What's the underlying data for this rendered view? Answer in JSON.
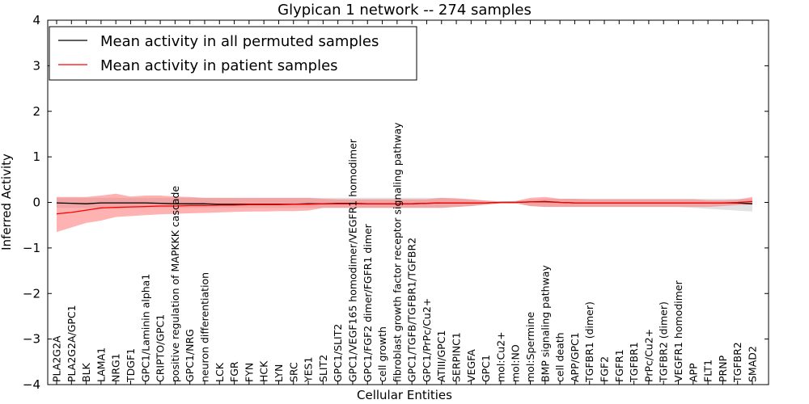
{
  "chart_data": {
    "type": "line",
    "title": "Glypican 1 network -- 274 samples",
    "xlabel": "Cellular Entities",
    "ylabel": "Inferred Activity",
    "ylim": [
      -4,
      4
    ],
    "yticks": [
      "−4",
      "−3",
      "−2",
      "−1",
      "0",
      "1",
      "2",
      "3",
      "4"
    ],
    "legend_position": "top-left",
    "categories": [
      "PLA2G2A",
      "PLA2G2A/GPC1",
      "BLK",
      "LAMA1",
      "NRG1",
      "TDGF1",
      "GPC1/Laminin alpha1",
      "CRIPTO/GPC1",
      "positive regulation of MAPKKK cascade",
      "GPC1/NRG",
      "neuron differentiation",
      "LCK",
      "FGR",
      "FYN",
      "HCK",
      "LYN",
      "SRC",
      "YES1",
      "SLIT2",
      "GPC1/SLIT2",
      "GPC1/VEGF165 homodimer/VEGFR1 homodimer",
      "GPC1/FGF2 dimer/FGFR1 dimer",
      "cell growth",
      "fibroblast growth factor receptor signaling pathway",
      "GPC1/TGFB/TGFBR1/TGFBR2",
      "GPC1/PrPc/Cu2+",
      "ATIII/GPC1",
      "SERPINC1",
      "VEGFA",
      "GPC1",
      "mol:Cu2+",
      "mol:NO",
      "mol:Spermine",
      "BMP signaling pathway",
      "cell death",
      "APP/GPC1",
      "TGFBR1 (dimer)",
      "FGF2",
      "FGFR1",
      "TGFBR1",
      "PrPc/Cu2+",
      "TGFBR2 (dimer)",
      "VEGFR1 homodimer",
      "APP",
      "FLT1",
      "PRNP",
      "TGFBR2",
      "SMAD2"
    ],
    "series": [
      {
        "name": "Mean activity in all permuted samples",
        "color": "#000000",
        "band_color": "#bfbfbf",
        "values": [
          -0.01,
          -0.02,
          -0.03,
          -0.01,
          -0.01,
          -0.01,
          -0.01,
          -0.02,
          -0.03,
          -0.03,
          -0.03,
          -0.04,
          -0.04,
          -0.04,
          -0.04,
          -0.04,
          -0.04,
          -0.03,
          -0.03,
          -0.02,
          -0.02,
          -0.03,
          -0.03,
          -0.03,
          -0.03,
          -0.02,
          -0.01,
          -0.01,
          -0.01,
          -0.01,
          0.0,
          0.0,
          0.01,
          0.02,
          0.0,
          -0.01,
          -0.01,
          -0.01,
          -0.01,
          -0.01,
          -0.01,
          -0.01,
          -0.01,
          -0.01,
          -0.01,
          -0.01,
          -0.01,
          -0.03
        ],
        "lower": [
          -0.12,
          -0.12,
          -0.12,
          -0.12,
          -0.12,
          -0.12,
          -0.12,
          -0.12,
          -0.12,
          -0.12,
          -0.12,
          -0.12,
          -0.12,
          -0.12,
          -0.12,
          -0.12,
          -0.12,
          -0.12,
          -0.12,
          -0.12,
          -0.12,
          -0.12,
          -0.12,
          -0.12,
          -0.12,
          -0.12,
          -0.12,
          -0.1,
          -0.08,
          -0.05,
          -0.02,
          -0.02,
          -0.08,
          -0.1,
          -0.1,
          -0.1,
          -0.1,
          -0.1,
          -0.1,
          -0.1,
          -0.1,
          -0.1,
          -0.1,
          -0.12,
          -0.14,
          -0.16,
          -0.18,
          -0.2
        ],
        "upper": [
          0.1,
          0.1,
          0.1,
          0.1,
          0.1,
          0.1,
          0.1,
          0.1,
          0.1,
          0.1,
          0.1,
          0.1,
          0.1,
          0.1,
          0.1,
          0.1,
          0.1,
          0.1,
          0.1,
          0.1,
          0.1,
          0.1,
          0.1,
          0.1,
          0.1,
          0.1,
          0.1,
          0.08,
          0.06,
          0.04,
          0.02,
          0.02,
          0.06,
          0.08,
          0.08,
          0.08,
          0.08,
          0.08,
          0.08,
          0.08,
          0.08,
          0.08,
          0.08,
          0.08,
          0.08,
          0.08,
          0.08,
          0.08
        ]
      },
      {
        "name": "Mean activity in patient samples",
        "color": "#ff0000",
        "band_color": "#ff6666",
        "values": [
          -0.25,
          -0.22,
          -0.17,
          -0.12,
          -0.11,
          -0.1,
          -0.09,
          -0.08,
          -0.08,
          -0.07,
          -0.07,
          -0.06,
          -0.06,
          -0.05,
          -0.05,
          -0.05,
          -0.04,
          -0.04,
          -0.03,
          -0.03,
          -0.03,
          -0.03,
          -0.03,
          -0.03,
          -0.03,
          -0.02,
          -0.01,
          -0.01,
          -0.01,
          -0.01,
          0.0,
          0.0,
          0.01,
          0.01,
          0.0,
          -0.01,
          -0.01,
          -0.01,
          -0.01,
          -0.01,
          -0.01,
          -0.01,
          -0.01,
          -0.01,
          -0.01,
          -0.01,
          0.0,
          0.02
        ],
        "lower": [
          -0.65,
          -0.55,
          -0.45,
          -0.4,
          -0.32,
          -0.3,
          -0.28,
          -0.26,
          -0.25,
          -0.24,
          -0.23,
          -0.22,
          -0.21,
          -0.2,
          -0.2,
          -0.19,
          -0.19,
          -0.18,
          -0.12,
          -0.12,
          -0.12,
          -0.12,
          -0.12,
          -0.12,
          -0.12,
          -0.12,
          -0.12,
          -0.1,
          -0.08,
          -0.05,
          -0.02,
          -0.02,
          -0.08,
          -0.1,
          -0.1,
          -0.1,
          -0.1,
          -0.1,
          -0.1,
          -0.1,
          -0.1,
          -0.1,
          -0.1,
          -0.1,
          -0.1,
          -0.08,
          -0.06,
          -0.05
        ],
        "upper": [
          0.12,
          0.12,
          0.12,
          0.15,
          0.19,
          0.13,
          0.15,
          0.15,
          0.13,
          0.12,
          0.1,
          0.1,
          0.1,
          0.1,
          0.1,
          0.1,
          0.1,
          0.1,
          0.08,
          0.07,
          0.07,
          0.07,
          0.07,
          0.07,
          0.07,
          0.07,
          0.1,
          0.09,
          0.07,
          0.04,
          0.02,
          0.03,
          0.1,
          0.12,
          0.08,
          0.08,
          0.07,
          0.07,
          0.07,
          0.07,
          0.07,
          0.07,
          0.07,
          0.07,
          0.05,
          0.05,
          0.06,
          0.12
        ]
      }
    ]
  }
}
